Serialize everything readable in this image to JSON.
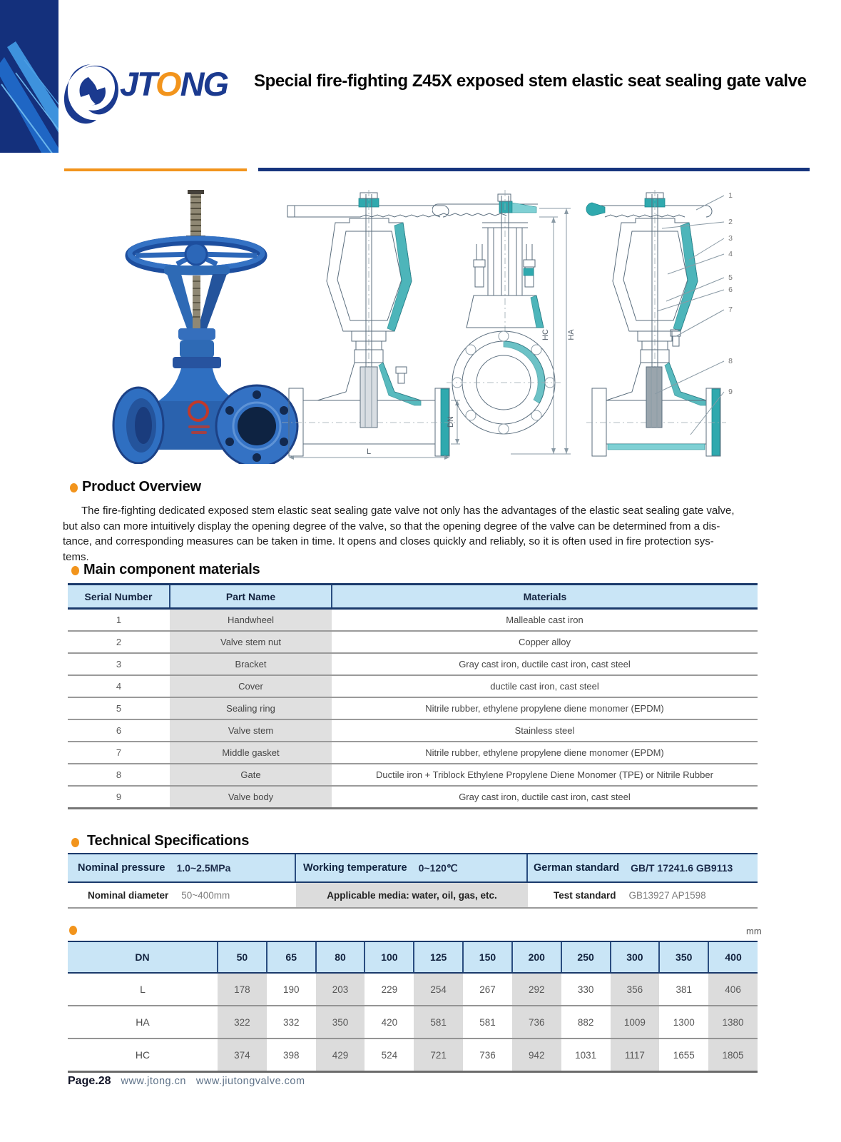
{
  "header": {
    "brand_jt": "JT",
    "brand_o": "O",
    "brand_ng": "NG",
    "title": "Special fire-fighting Z45X exposed stem elastic seat sealing gate valve"
  },
  "drawings": {
    "dim_dn": "DN",
    "dim_l": "L",
    "dim_hc": "HC",
    "dim_ha": "HA",
    "callouts": [
      "1",
      "2",
      "3",
      "4",
      "5",
      "6",
      "7",
      "8",
      "9"
    ]
  },
  "overview": {
    "heading": "Product Overview",
    "lines": [
      "The fire-fighting dedicated exposed stem elastic seat sealing gate valve not only has the advantages of the elastic seat sealing gate valve,",
      "but also can more intuitively display the opening degree of the valve, so that the opening degree of the valve can be determined from a dis-",
      "tance, and corresponding measures can be taken in time. It opens and closes quickly and reliably, so it is often used in fire protection sys-",
      "tems."
    ]
  },
  "materials": {
    "heading": "Main component materials",
    "columns": [
      "Serial Number",
      "Part Name",
      "Materials"
    ],
    "rows": [
      [
        "1",
        "Handwheel",
        "Malleable cast iron"
      ],
      [
        "2",
        "Valve stem nut",
        "Copper alloy"
      ],
      [
        "3",
        "Bracket",
        "Gray cast iron, ductile cast iron, cast steel"
      ],
      [
        "4",
        "Cover",
        "ductile cast iron, cast steel"
      ],
      [
        "5",
        "Sealing ring",
        "Nitrile rubber, ethylene propylene diene monomer (EPDM)"
      ],
      [
        "6",
        "Valve stem",
        "Stainless steel"
      ],
      [
        "7",
        "Middle gasket",
        "Nitrile rubber, ethylene propylene diene monomer (EPDM)"
      ],
      [
        "8",
        "Gate",
        "Ductile iron + Triblock Ethylene Propylene Diene Monomer (TPE) or Nitrile Rubber"
      ],
      [
        "9",
        "Valve body",
        "Gray cast iron, ductile cast iron, cast steel"
      ]
    ]
  },
  "specs": {
    "heading": "Technical Specifications",
    "row1": [
      {
        "label": "Nominal pressure",
        "value": "1.0~2.5MPa"
      },
      {
        "label": "Working temperature",
        "value": "0~120℃"
      },
      {
        "label": "German standard",
        "value": "GB/T 17241.6 GB9113"
      }
    ],
    "row2": [
      {
        "label": "Nominal diameter",
        "value": "50~400mm"
      },
      {
        "label": "Applicable media: water, oil, gas, etc.",
        "value": ""
      },
      {
        "label": "Test standard",
        "value": "GB13927 AP1598"
      }
    ]
  },
  "dimensions": {
    "unit": "mm",
    "header": [
      "DN",
      "50",
      "65",
      "80",
      "100",
      "125",
      "150",
      "200",
      "250",
      "300",
      "350",
      "400"
    ],
    "rows": [
      {
        "label": "L",
        "values": [
          "178",
          "190",
          "203",
          "229",
          "254",
          "267",
          "292",
          "330",
          "356",
          "381",
          "406"
        ]
      },
      {
        "label": "HA",
        "values": [
          "322",
          "332",
          "350",
          "420",
          "581",
          "581",
          "736",
          "882",
          "1009",
          "1300",
          "1380"
        ]
      },
      {
        "label": "HC",
        "values": [
          "374",
          "398",
          "429",
          "524",
          "721",
          "736",
          "942",
          "1031",
          "1117",
          "1655",
          "1805"
        ]
      }
    ]
  },
  "footer": {
    "page": "Page.28",
    "url1": "www.jtong.cn",
    "url2": "www.jiutongvalve.com"
  },
  "colors": {
    "navy": "#17357e",
    "orange": "#f2941c",
    "table_header_blue": "#c9e5f6",
    "shade_gray": "#dcdcdc",
    "drawing_teal": "#2fa9ae",
    "valve_blue": "#2f6fc1"
  }
}
